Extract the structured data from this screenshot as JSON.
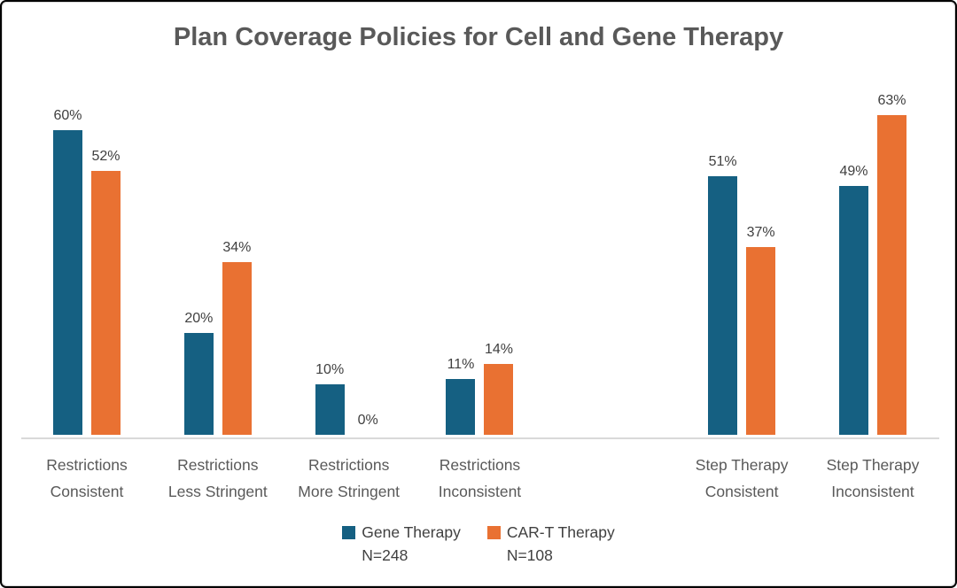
{
  "header": {
    "title": "Plan Coverage Policies for Cell and Gene Therapy"
  },
  "colors": {
    "gene_therapy": "#156082",
    "cart_therapy": "#E97132",
    "axis_line": "#D9D9D9",
    "title_text": "#595959",
    "category_text": "#595959",
    "value_text": "#404040"
  },
  "chart_data": {
    "type": "bar",
    "title": "Plan Coverage Policies for Cell and Gene Therapy",
    "categories": [
      "Restrictions\nConsistent",
      "Restrictions\nLess Stringent",
      "Restrictions\nMore Stringent",
      "Restrictions\nInconsistent",
      "Step Therapy\nConsistent",
      "Step Therapy\nInconsistent"
    ],
    "category_slots": [
      0,
      1,
      2,
      3,
      5,
      6
    ],
    "series": [
      {
        "name": "Gene Therapy",
        "n_label": "N=248",
        "color": "#156082",
        "values": [
          60,
          20,
          10,
          11,
          51,
          49
        ],
        "value_labels": [
          "60%",
          "20%",
          "10%",
          "11%",
          "51%",
          "49%"
        ]
      },
      {
        "name": "CAR-T Therapy",
        "n_label": "N=108",
        "color": "#E97132",
        "values": [
          52,
          34,
          0,
          14,
          37,
          63
        ],
        "value_labels": [
          "52%",
          "34%",
          "0%",
          "14%",
          "37%",
          "63%"
        ]
      }
    ],
    "xlabel": "",
    "ylabel": "",
    "ylim": [
      0,
      70
    ],
    "grid": false,
    "y_axis_shown": false,
    "legend_position": "bottom"
  },
  "legend": {
    "items": [
      {
        "label": "Gene Therapy",
        "n_label": "N=248",
        "color": "#156082"
      },
      {
        "label": "CAR-T Therapy",
        "n_label": "N=108",
        "color": "#E97132"
      }
    ]
  }
}
